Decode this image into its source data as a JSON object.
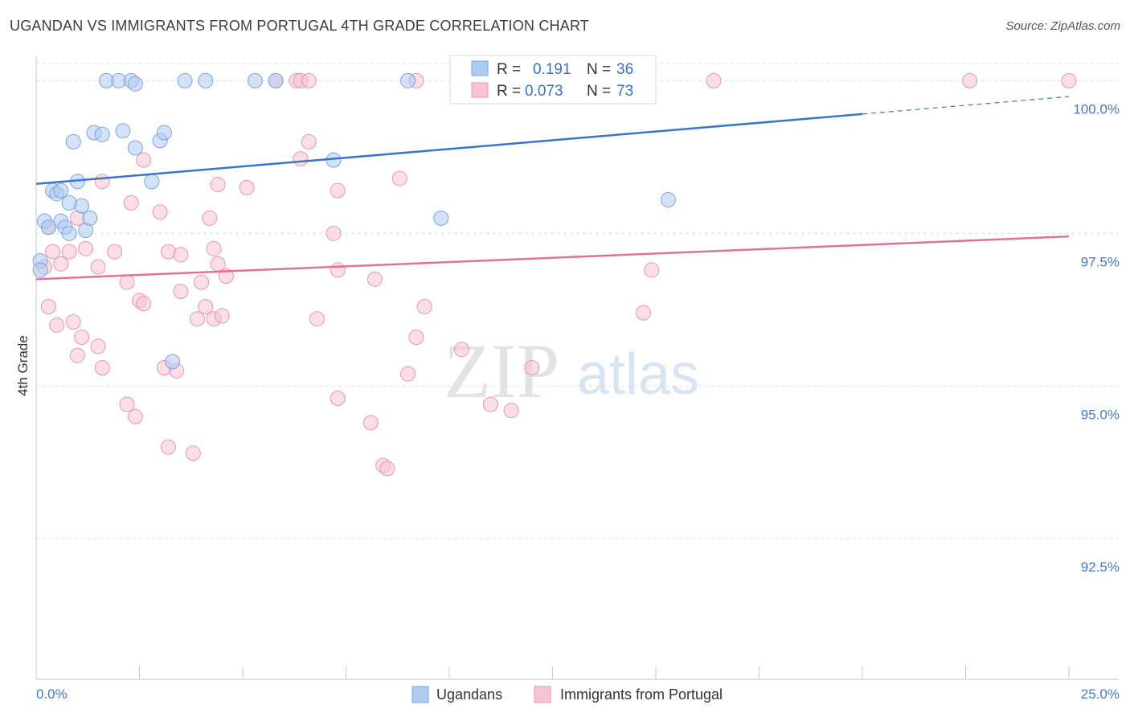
{
  "header": {
    "title": "UGANDAN VS IMMIGRANTS FROM PORTUGAL 4TH GRADE CORRELATION CHART",
    "source": "Source: ZipAtlas.com"
  },
  "watermark": {
    "zip": "ZIP",
    "atlas": "atlas"
  },
  "legend": {
    "r_label": "R =",
    "n_label": "N =",
    "items": [
      {
        "r": "0.191",
        "n": "36",
        "color": "#aecbf0",
        "stroke": "#7ba4e0"
      },
      {
        "r": "0.073",
        "n": "73",
        "color": "#f7c3d2",
        "stroke": "#e995b0"
      }
    ]
  },
  "bottom_legend": [
    "Ugandans",
    "Immigrants from Portugal"
  ],
  "chart_data": {
    "type": "scatter",
    "title": "UGANDAN VS IMMIGRANTS FROM PORTUGAL 4TH GRADE CORRELATION CHART",
    "ylabel": "4th Grade",
    "xlabel": "",
    "xlim": [
      0,
      25
    ],
    "ylim": [
      90.2,
      100.4
    ],
    "x_tick_labels": [
      "0.0%",
      "25.0%"
    ],
    "y_ticks": [
      92.5,
      95.0,
      97.5,
      100.0
    ],
    "y_tick_labels": [
      "92.5%",
      "95.0%",
      "97.5%",
      "100.0%"
    ],
    "grid": "horizontal dashed",
    "legend_placement": "top-center",
    "series": [
      {
        "name": "Ugandans",
        "color": "#7ba4e0",
        "fill": "#aecbf0",
        "line_color": "#3a74cc",
        "trend": {
          "x": [
            0,
            25
          ],
          "y": [
            98.31,
            99.74
          ],
          "solid_until_x": 20
        },
        "x": [
          1.7,
          2.0,
          2.3,
          2.4,
          3.6,
          4.1,
          5.3,
          5.8,
          9.0,
          0.9,
          1.4,
          1.6,
          2.4,
          2.1,
          3.0,
          3.1,
          0.4,
          0.5,
          0.6,
          1.0,
          1.1,
          1.2,
          1.3,
          0.8,
          0.2,
          0.6,
          0.7,
          0.3,
          0.8,
          2.8,
          7.2,
          9.8,
          15.3,
          3.3,
          0.1,
          0.1
        ],
        "y": [
          100.0,
          100.0,
          100.0,
          99.95,
          100.0,
          100.0,
          100.0,
          100.0,
          100.0,
          99.0,
          99.15,
          99.12,
          98.9,
          99.18,
          99.02,
          99.15,
          98.2,
          98.15,
          98.2,
          98.35,
          97.95,
          97.55,
          97.75,
          98.0,
          97.7,
          97.7,
          97.6,
          97.6,
          97.5,
          98.35,
          98.7,
          97.75,
          98.05,
          95.4,
          97.05,
          96.9
        ]
      },
      {
        "name": "Immigrants from Portugal",
        "color": "#e995b0",
        "fill": "#f7c3d2",
        "line_color": "#e07299",
        "trend": {
          "x": [
            0,
            25
          ],
          "y": [
            96.75,
            97.45
          ]
        },
        "x": [
          5.8,
          6.3,
          6.4,
          6.6,
          9.2,
          13.7,
          16.4,
          22.6,
          25.0,
          2.6,
          3.0,
          4.4,
          5.1,
          6.4,
          6.6,
          7.3,
          1.6,
          2.3,
          3.2,
          4.2,
          4.3,
          8.8,
          0.3,
          1.0,
          1.2,
          2.2,
          3.5,
          4.0,
          4.4,
          0.6,
          0.8,
          1.5,
          1.9,
          3.5,
          3.9,
          4.1,
          4.3,
          4.5,
          4.6,
          6.8,
          7.2,
          7.3,
          8.2,
          0.4,
          0.2,
          0.9,
          1.1,
          2.5,
          2.6,
          3.1,
          3.4,
          0.3,
          0.5,
          1.0,
          1.5,
          1.6,
          2.2,
          2.4,
          3.2,
          3.8,
          7.3,
          8.1,
          8.4,
          8.5,
          9.0,
          9.4,
          9.2,
          10.3,
          12.0,
          11.0,
          11.5,
          14.7,
          14.9
        ],
        "y": [
          100.0,
          100.0,
          100.0,
          100.0,
          100.0,
          100.0,
          100.0,
          100.0,
          100.0,
          98.7,
          97.85,
          98.3,
          98.25,
          98.72,
          99.0,
          98.2,
          98.35,
          98.0,
          97.2,
          97.75,
          97.25,
          98.4,
          97.6,
          97.75,
          97.25,
          96.7,
          97.15,
          96.7,
          97.0,
          97.0,
          97.2,
          96.95,
          97.2,
          96.55,
          96.1,
          96.3,
          96.1,
          96.15,
          96.8,
          96.1,
          97.5,
          96.9,
          96.75,
          97.2,
          96.95,
          96.05,
          95.8,
          96.4,
          96.35,
          95.3,
          95.25,
          96.3,
          96.0,
          95.5,
          95.65,
          95.3,
          94.7,
          94.5,
          94.0,
          93.9,
          94.8,
          94.4,
          93.7,
          93.65,
          95.2,
          96.3,
          95.8,
          95.6,
          95.3,
          94.7,
          94.6,
          96.2,
          96.9
        ]
      }
    ]
  }
}
